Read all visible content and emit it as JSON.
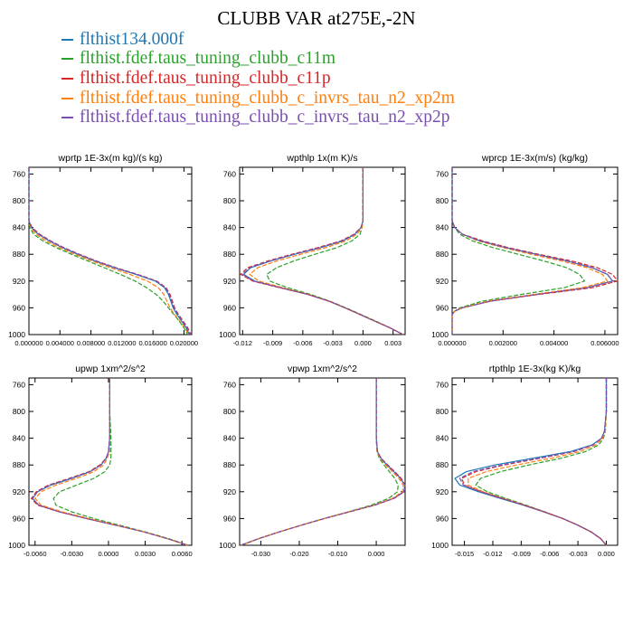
{
  "title": "CLUBB VAR at275E,-2N",
  "legend": [
    {
      "label": "flthist134.000f",
      "color": "#1f77b4"
    },
    {
      "label": "flthist.fdef.taus_tuning_clubb_c11m",
      "color": "#2ca02c"
    },
    {
      "label": "flthist.fdef.taus_tuning_clubb_c11p",
      "color": "#d62728"
    },
    {
      "label": "flthist.fdef.taus_tuning_clubb_c_invrs_tau_n2_xp2m",
      "color": "#ff7f0e"
    },
    {
      "label": "flthist.fdef.taus_tuning_clubb_c_invrs_tau_n2_xp2p",
      "color": "#7b4fb0"
    }
  ],
  "chart_data": [
    {
      "type": "line",
      "title": "wprtp  1E-3x(m kg)/(s kg)",
      "xlim": [
        0.0,
        0.021
      ],
      "ylim": [
        750,
        1000
      ],
      "y_inverted": true,
      "xticks": [
        0.0,
        0.004,
        0.008,
        0.012,
        0.016,
        0.02
      ],
      "xticklabels": [
        "0.000000",
        "0.004000",
        "0.008000",
        "0.012000",
        "0.016000",
        "0.020000"
      ],
      "yticks": [
        760,
        800,
        840,
        880,
        920,
        960,
        1000
      ],
      "y": [
        750,
        800,
        830,
        840,
        850,
        860,
        870,
        880,
        890,
        900,
        910,
        920,
        930,
        940,
        950,
        960,
        970,
        980,
        990,
        1000
      ],
      "series": [
        {
          "values": [
            0.0,
            0.0,
            0.0,
            0.0003,
            0.0012,
            0.0026,
            0.0043,
            0.0063,
            0.0085,
            0.011,
            0.0138,
            0.0163,
            0.0175,
            0.018,
            0.0183,
            0.0186,
            0.0191,
            0.0197,
            0.0203,
            0.0207
          ]
        },
        {
          "values": [
            0.0,
            0.0,
            0.0,
            0.0001,
            0.0006,
            0.0018,
            0.0035,
            0.0055,
            0.0076,
            0.0097,
            0.0118,
            0.0137,
            0.0152,
            0.0164,
            0.0173,
            0.018,
            0.0187,
            0.0194,
            0.02,
            0.0205
          ]
        },
        {
          "values": [
            0.0,
            0.0,
            0.0,
            0.0004,
            0.0014,
            0.0028,
            0.0045,
            0.0065,
            0.0087,
            0.0112,
            0.014,
            0.0165,
            0.0177,
            0.0182,
            0.0185,
            0.0188,
            0.0193,
            0.0199,
            0.0205,
            0.0209
          ]
        },
        {
          "values": [
            0.0,
            0.0,
            0.0,
            0.0002,
            0.0009,
            0.0022,
            0.0039,
            0.0059,
            0.0081,
            0.0105,
            0.013,
            0.0153,
            0.0167,
            0.0174,
            0.0178,
            0.0182,
            0.0188,
            0.0195,
            0.0201,
            0.0206
          ]
        },
        {
          "values": [
            0.0,
            0.0,
            0.0,
            0.0003,
            0.0013,
            0.0027,
            0.0044,
            0.0064,
            0.0086,
            0.0111,
            0.0139,
            0.0164,
            0.0176,
            0.0181,
            0.0184,
            0.0187,
            0.0192,
            0.0198,
            0.0204,
            0.0208
          ]
        }
      ]
    },
    {
      "type": "line",
      "title": "wpthlp  1x(m K)/s",
      "xlim": [
        -0.0123,
        0.0042
      ],
      "ylim": [
        750,
        1000
      ],
      "y_inverted": true,
      "xticks": [
        -0.012,
        -0.009,
        -0.006,
        -0.003,
        0.0,
        0.003
      ],
      "xticklabels": [
        "-0.012",
        "-0.009",
        "-0.006",
        "-0.003",
        "0.000",
        "0.003"
      ],
      "yticks": [
        760,
        800,
        840,
        880,
        920,
        960,
        1000
      ],
      "y": [
        750,
        800,
        830,
        840,
        850,
        860,
        870,
        880,
        890,
        900,
        910,
        920,
        930,
        940,
        950,
        960,
        970,
        980,
        990,
        1000
      ],
      "series": [
        {
          "values": [
            0.0,
            0.0,
            0.0,
            -0.0002,
            -0.0008,
            -0.002,
            -0.0042,
            -0.0068,
            -0.0092,
            -0.0112,
            -0.0119,
            -0.0108,
            -0.0082,
            -0.0055,
            -0.0034,
            -0.0018,
            -0.0003,
            0.0012,
            0.0027,
            0.004
          ]
        },
        {
          "values": [
            0.0,
            0.0,
            0.0,
            -0.0001,
            -0.0003,
            -0.0011,
            -0.0026,
            -0.0048,
            -0.0069,
            -0.0086,
            -0.0096,
            -0.0093,
            -0.0075,
            -0.0052,
            -0.0033,
            -0.0017,
            -0.0002,
            0.0013,
            0.0027,
            0.004
          ]
        },
        {
          "values": [
            0.0,
            0.0,
            0.0,
            -0.0002,
            -0.0009,
            -0.0022,
            -0.0045,
            -0.0071,
            -0.0095,
            -0.0115,
            -0.0122,
            -0.011,
            -0.0083,
            -0.0055,
            -0.0034,
            -0.0018,
            -0.0003,
            0.0012,
            0.0027,
            0.004
          ]
        },
        {
          "values": [
            0.0,
            0.0,
            0.0,
            -0.0001,
            -0.0006,
            -0.0017,
            -0.0037,
            -0.0062,
            -0.0086,
            -0.0105,
            -0.0113,
            -0.0104,
            -0.008,
            -0.0054,
            -0.0034,
            -0.0018,
            -0.0003,
            0.0012,
            0.0027,
            0.004
          ]
        },
        {
          "values": [
            0.0,
            0.0,
            0.0,
            -0.0002,
            -0.0008,
            -0.0021,
            -0.0043,
            -0.0069,
            -0.0093,
            -0.0113,
            -0.012,
            -0.0109,
            -0.0082,
            -0.0055,
            -0.0034,
            -0.0018,
            -0.0003,
            0.0012,
            0.0027,
            0.004
          ]
        }
      ]
    },
    {
      "type": "line",
      "title": "wprcp  1E-3x(m/s) (kg/kg)",
      "xlim": [
        0.0,
        0.0065
      ],
      "ylim": [
        750,
        1000
      ],
      "y_inverted": true,
      "xticks": [
        0.0,
        0.002,
        0.004,
        0.006
      ],
      "xticklabels": [
        "0.000000",
        "0.002000",
        "0.004000",
        "0.006000"
      ],
      "yticks": [
        760,
        800,
        840,
        880,
        920,
        960,
        1000
      ],
      "y": [
        750,
        800,
        830,
        840,
        850,
        860,
        870,
        880,
        890,
        900,
        910,
        920,
        930,
        940,
        950,
        960,
        965,
        970,
        980,
        990,
        1000
      ],
      "series": [
        {
          "values": [
            0.0,
            0.0,
            0.0,
            0.0001,
            0.0004,
            0.0011,
            0.0021,
            0.0033,
            0.0045,
            0.0055,
            0.0061,
            0.0063,
            0.0053,
            0.0033,
            0.0015,
            0.0004,
            0.0001,
            0.0,
            0.0,
            0.0,
            0.0
          ]
        },
        {
          "values": [
            0.0,
            0.0,
            0.0,
            0.0001,
            0.0003,
            0.0008,
            0.0016,
            0.0026,
            0.0036,
            0.0045,
            0.005,
            0.0052,
            0.0044,
            0.0027,
            0.0012,
            0.0003,
            0.0001,
            0.0,
            0.0,
            0.0,
            0.0
          ]
        },
        {
          "values": [
            0.0,
            0.0,
            0.0,
            0.0001,
            0.0004,
            0.0012,
            0.0022,
            0.0034,
            0.0047,
            0.0057,
            0.0063,
            0.0065,
            0.0055,
            0.0034,
            0.0015,
            0.0004,
            0.0001,
            0.0,
            0.0,
            0.0,
            0.0
          ]
        },
        {
          "values": [
            0.0,
            0.0,
            0.0,
            0.0001,
            0.0004,
            0.001,
            0.002,
            0.0031,
            0.0043,
            0.0053,
            0.0059,
            0.0061,
            0.0051,
            0.0032,
            0.0014,
            0.0004,
            0.0001,
            0.0,
            0.0,
            0.0,
            0.0
          ]
        },
        {
          "values": [
            0.0,
            0.0,
            0.0,
            0.0001,
            0.0004,
            0.0011,
            0.0021,
            0.0033,
            0.0045,
            0.0055,
            0.0061,
            0.0063,
            0.0053,
            0.0033,
            0.0015,
            0.0004,
            0.0001,
            0.0,
            0.0,
            0.0,
            0.0
          ]
        }
      ]
    },
    {
      "type": "line",
      "title": "upwp  1xm^2/s^2",
      "xlim": [
        -0.0065,
        0.0068
      ],
      "ylim": [
        750,
        1000
      ],
      "y_inverted": true,
      "xticks": [
        -0.006,
        -0.003,
        0.0,
        0.003,
        0.006
      ],
      "xticklabels": [
        "-0.0060",
        "-0.0030",
        "0.0000",
        "0.0030",
        "0.0060"
      ],
      "yticks": [
        760,
        800,
        840,
        880,
        920,
        960,
        1000
      ],
      "y": [
        750,
        800,
        840,
        860,
        870,
        880,
        890,
        900,
        910,
        920,
        930,
        940,
        950,
        960,
        970,
        980,
        990,
        1000
      ],
      "series": [
        {
          "values": [
            0.0001,
            0.0001,
            0.0001,
            0.0,
            -0.0002,
            -0.0006,
            -0.0015,
            -0.003,
            -0.0047,
            -0.0058,
            -0.0062,
            -0.0057,
            -0.004,
            -0.0018,
            0.0006,
            0.0029,
            0.0048,
            0.0065
          ]
        },
        {
          "values": [
            0.0001,
            0.0001,
            0.0002,
            0.0002,
            0.0002,
            0.0001,
            -0.0003,
            -0.0012,
            -0.0026,
            -0.004,
            -0.0045,
            -0.0043,
            -0.003,
            -0.0012,
            0.0009,
            0.003,
            0.0049,
            0.0065
          ]
        },
        {
          "values": [
            0.0001,
            0.0001,
            0.0001,
            0.0,
            -0.0002,
            -0.0007,
            -0.0016,
            -0.0032,
            -0.0049,
            -0.0059,
            -0.0063,
            -0.0058,
            -0.004,
            -0.0018,
            0.0006,
            0.0029,
            0.0048,
            0.0065
          ]
        },
        {
          "values": [
            0.0001,
            0.0001,
            0.0001,
            0.0001,
            -0.0001,
            -0.0004,
            -0.0012,
            -0.0026,
            -0.0043,
            -0.0055,
            -0.006,
            -0.0055,
            -0.0038,
            -0.0016,
            0.0007,
            0.0029,
            0.0048,
            0.0065
          ]
        },
        {
          "values": [
            0.0001,
            0.0001,
            0.0001,
            0.0,
            -0.0002,
            -0.0006,
            -0.0015,
            -0.0031,
            -0.0048,
            -0.0058,
            -0.0062,
            -0.0057,
            -0.004,
            -0.0018,
            0.0006,
            0.0029,
            0.0048,
            0.0065
          ]
        }
      ]
    },
    {
      "type": "line",
      "title": "vpwp  1xm^2/s^2",
      "xlim": [
        -0.0355,
        0.0075
      ],
      "ylim": [
        750,
        1000
      ],
      "y_inverted": true,
      "xticks": [
        -0.03,
        -0.02,
        -0.01,
        0.0
      ],
      "xticklabels": [
        "-0.030",
        "-0.020",
        "-0.010",
        "0.000"
      ],
      "yticks": [
        760,
        800,
        840,
        880,
        920,
        960,
        1000
      ],
      "y": [
        750,
        800,
        840,
        860,
        870,
        880,
        890,
        900,
        910,
        920,
        930,
        940,
        950,
        960,
        970,
        980,
        990,
        1000
      ],
      "series": [
        {
          "values": [
            0.0,
            0.0,
            0.0,
            0.0003,
            0.0012,
            0.0028,
            0.0046,
            0.0063,
            0.0074,
            0.0072,
            0.0045,
            -0.0005,
            -0.007,
            -0.0135,
            -0.0195,
            -0.0252,
            -0.0305,
            -0.0352
          ]
        },
        {
          "values": [
            0.0,
            0.0,
            0.0,
            0.0002,
            0.0008,
            0.002,
            0.0034,
            0.0048,
            0.0057,
            0.0055,
            0.0032,
            -0.0013,
            -0.0073,
            -0.0136,
            -0.0195,
            -0.0252,
            -0.0305,
            -0.0352
          ]
        },
        {
          "values": [
            0.0,
            0.0,
            0.0,
            0.0003,
            0.0013,
            0.003,
            0.0048,
            0.0065,
            0.0075,
            0.0073,
            0.0046,
            -0.0004,
            -0.0069,
            -0.0134,
            -0.0195,
            -0.0252,
            -0.0305,
            -0.0352
          ]
        },
        {
          "values": [
            0.0,
            0.0,
            0.0,
            0.0002,
            0.001,
            0.0025,
            0.0042,
            0.0059,
            0.007,
            0.0068,
            0.0042,
            -0.0007,
            -0.0071,
            -0.0135,
            -0.0195,
            -0.0252,
            -0.0305,
            -0.0352
          ]
        },
        {
          "values": [
            0.0,
            0.0,
            0.0,
            0.0003,
            0.0012,
            0.0028,
            0.0046,
            0.0063,
            0.0074,
            0.0072,
            0.0045,
            -0.0005,
            -0.007,
            -0.0135,
            -0.0195,
            -0.0252,
            -0.0305,
            -0.0352
          ]
        }
      ]
    },
    {
      "type": "line",
      "title": "rtpthlp  1E-3x(kg K)/kg",
      "xlim": [
        -0.0163,
        0.0012
      ],
      "ylim": [
        750,
        1000
      ],
      "y_inverted": true,
      "xticks": [
        -0.015,
        -0.012,
        -0.009,
        -0.006,
        -0.003,
        0.0
      ],
      "xticklabels": [
        "-0.015",
        "-0.012",
        "-0.009",
        "-0.006",
        "-0.003",
        "0.000"
      ],
      "yticks": [
        760,
        800,
        840,
        880,
        920,
        960,
        1000
      ],
      "y": [
        750,
        800,
        830,
        840,
        850,
        860,
        870,
        880,
        890,
        900,
        910,
        920,
        930,
        940,
        950,
        960,
        970,
        980,
        990,
        1000
      ],
      "series": [
        {
          "values": [
            0.0,
            0.0,
            -0.0002,
            -0.0005,
            -0.0015,
            -0.0038,
            -0.0078,
            -0.0118,
            -0.0148,
            -0.016,
            -0.0155,
            -0.0135,
            -0.0112,
            -0.0088,
            -0.0066,
            -0.0046,
            -0.003,
            -0.0016,
            -0.0006,
            0.0
          ]
        },
        {
          "values": [
            0.0,
            0.0,
            -0.0001,
            -0.0003,
            -0.0008,
            -0.0022,
            -0.0048,
            -0.0082,
            -0.0112,
            -0.0133,
            -0.0138,
            -0.0126,
            -0.0106,
            -0.0085,
            -0.0065,
            -0.0046,
            -0.003,
            -0.0016,
            -0.0006,
            0.0
          ]
        },
        {
          "values": [
            0.0,
            0.0,
            -0.0002,
            -0.0005,
            -0.0014,
            -0.0034,
            -0.007,
            -0.0108,
            -0.0138,
            -0.0153,
            -0.015,
            -0.0132,
            -0.011,
            -0.0087,
            -0.0066,
            -0.0046,
            -0.003,
            -0.0016,
            -0.0006,
            0.0
          ]
        },
        {
          "values": [
            0.0,
            0.0,
            -0.0001,
            -0.0004,
            -0.0011,
            -0.0028,
            -0.0058,
            -0.0095,
            -0.0127,
            -0.0146,
            -0.0146,
            -0.013,
            -0.0109,
            -0.0086,
            -0.0065,
            -0.0046,
            -0.003,
            -0.0016,
            -0.0006,
            0.0
          ]
        },
        {
          "values": [
            0.0,
            0.0,
            -0.0002,
            -0.0005,
            -0.0014,
            -0.0035,
            -0.0072,
            -0.0111,
            -0.0141,
            -0.0155,
            -0.0151,
            -0.0133,
            -0.011,
            -0.0087,
            -0.0066,
            -0.0046,
            -0.003,
            -0.0016,
            -0.0006,
            0.0
          ]
        }
      ]
    }
  ]
}
